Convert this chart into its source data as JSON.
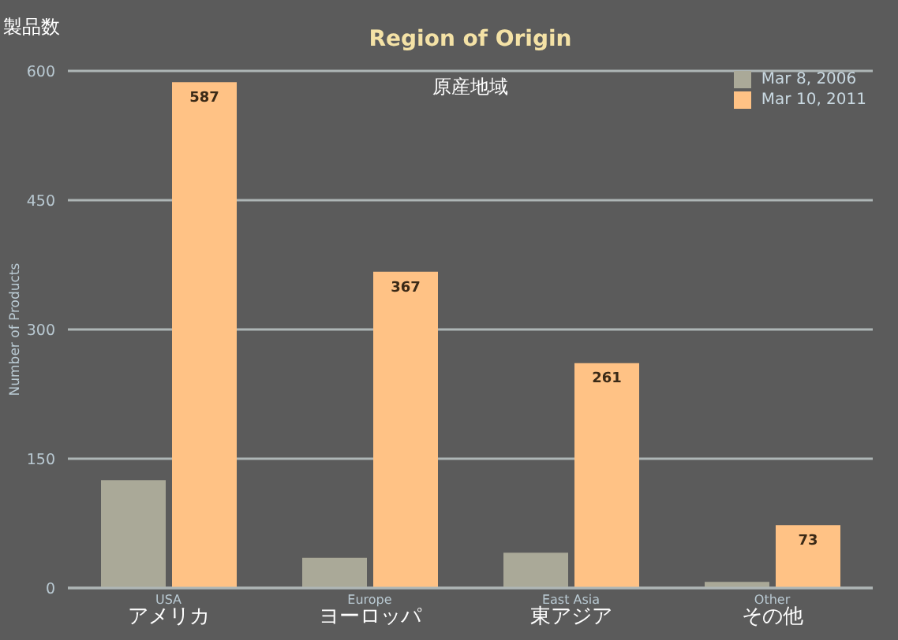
{
  "chart_data": {
    "type": "bar",
    "title": "Region of Origin",
    "subtitle": "原産地域",
    "ylabel": "Number of Products",
    "annotations": [
      "製品数"
    ],
    "categories": [
      "USA\nアメリカ",
      "Europe\nヨーロッパ",
      "East Asia\n東アジア",
      "Other\nその他"
    ],
    "series": [
      {
        "name": "Mar 8, 2006",
        "color": "#aaa998",
        "values": [
          125,
          35,
          41,
          7
        ]
      },
      {
        "name": "Mar 10, 2011",
        "color": "#ffc285",
        "values": [
          587,
          367,
          261,
          73
        ],
        "value_labels": [
          "587",
          "367",
          "261",
          "73"
        ]
      }
    ],
    "ylim": [
      0,
      600
    ],
    "yticks": [
      0,
      150,
      300,
      450,
      600
    ],
    "grid": "y",
    "legend": "top right"
  }
}
